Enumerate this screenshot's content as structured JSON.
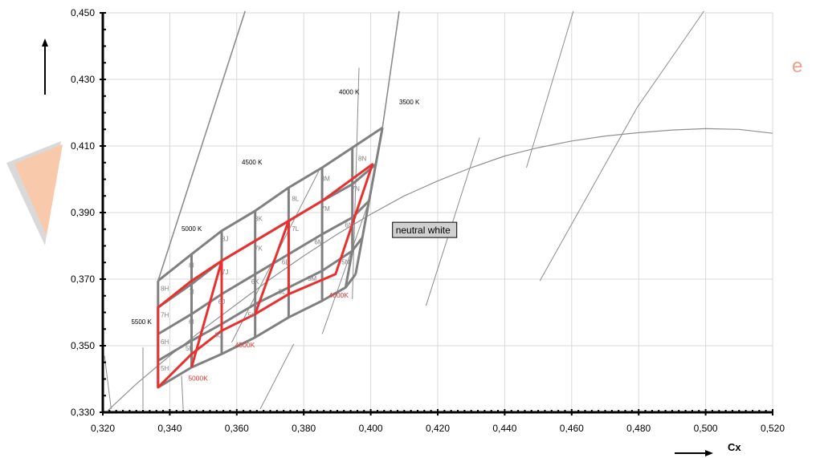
{
  "chart_data": {
    "type": "line",
    "xlabel": "Cx",
    "ylabel": "",
    "xlim": [
      0.32,
      0.52
    ],
    "ylim": [
      0.33,
      0.45
    ],
    "x_ticks": [
      "0,320",
      "0,340",
      "0,360",
      "0,380",
      "0,400",
      "0,420",
      "0,440",
      "0,460",
      "0,480",
      "0,500",
      "0,520"
    ],
    "y_ticks": [
      "0,330",
      "0,350",
      "0,370",
      "0,390",
      "0,410",
      "0,430",
      "0,450"
    ],
    "x_tick_values": [
      0.32,
      0.34,
      0.36,
      0.38,
      0.4,
      0.42,
      0.44,
      0.46,
      0.48,
      0.5,
      0.52
    ],
    "y_tick_values": [
      0.33,
      0.35,
      0.37,
      0.39,
      0.41,
      0.43,
      0.45
    ],
    "grid": true,
    "annotation": "neutral white",
    "planckian_locus": [
      [
        0.3215,
        0.3305
      ],
      [
        0.33,
        0.3385
      ],
      [
        0.34,
        0.347
      ],
      [
        0.35,
        0.355
      ],
      [
        0.36,
        0.3625
      ],
      [
        0.37,
        0.37
      ],
      [
        0.38,
        0.377
      ],
      [
        0.39,
        0.3835
      ],
      [
        0.4,
        0.3895
      ],
      [
        0.41,
        0.395
      ],
      [
        0.42,
        0.3995
      ],
      [
        0.43,
        0.4035
      ],
      [
        0.44,
        0.407
      ],
      [
        0.45,
        0.4095
      ],
      [
        0.46,
        0.4115
      ],
      [
        0.47,
        0.413
      ],
      [
        0.48,
        0.414
      ],
      [
        0.49,
        0.4148
      ],
      [
        0.5,
        0.4152
      ],
      [
        0.51,
        0.415
      ],
      [
        0.52,
        0.4138
      ]
    ],
    "isotherms": [
      {
        "label": "5500 K",
        "points": [
          [
            0.3205,
            0.347
          ],
          [
            0.3225,
            0.331
          ]
        ]
      },
      {
        "label": "",
        "points": [
          [
            0.332,
            0.3495
          ],
          [
            0.332,
            0.331
          ]
        ]
      },
      {
        "label": "5000 K",
        "points": [
          [
            0.3365,
            0.3695
          ],
          [
            0.3625,
            0.4505
          ]
        ]
      },
      {
        "label": "",
        "points": [
          [
            0.3435,
            0.341
          ],
          [
            0.344,
            0.331
          ]
        ]
      },
      {
        "label": "4500 K",
        "points": [
          [
            0.3585,
            0.351
          ],
          [
            0.3845,
            0.4025
          ]
        ]
      },
      {
        "label": "",
        "points": [
          [
            0.367,
            0.331
          ],
          [
            0.377,
            0.3505
          ]
        ]
      },
      {
        "label": "4000 K",
        "points": [
          [
            0.3855,
            0.3535
          ],
          [
            0.3995,
            0.3935
          ]
        ]
      },
      {
        "label": "",
        "points": [
          [
            0.4035,
            0.4155
          ],
          [
            0.4085,
            0.4505
          ]
        ]
      },
      {
        "label": "",
        "points": [
          [
            0.3945,
            0.364
          ],
          [
            0.3965,
            0.4335
          ]
        ]
      },
      {
        "label": "3500 K",
        "points": [
          [
            0.4165,
            0.362
          ],
          [
            0.4325,
            0.4125
          ]
        ]
      },
      {
        "label": "",
        "points": [
          [
            0.4505,
            0.3695
          ],
          [
            0.4795,
            0.4215
          ]
        ]
      },
      {
        "label": "",
        "points": [
          [
            0.4465,
            0.4035
          ],
          [
            0.4605,
            0.4505
          ]
        ]
      },
      {
        "label": "",
        "points": [
          [
            0.4795,
            0.4215
          ],
          [
            0.4995,
            0.4505
          ]
        ]
      }
    ],
    "gray_bins": {
      "color": "#808080",
      "rows": [
        [
          [
            0.3365,
            0.3695
          ],
          [
            0.3465,
            0.3775
          ],
          [
            0.3555,
            0.3845
          ],
          [
            0.3655,
            0.3905
          ],
          [
            0.3755,
            0.3975
          ],
          [
            0.3855,
            0.4035
          ],
          [
            0.3945,
            0.4095
          ],
          [
            0.4035,
            0.4155
          ]
        ],
        [
          [
            0.3365,
            0.3615
          ],
          [
            0.3465,
            0.3685
          ],
          [
            0.3555,
            0.3755
          ],
          [
            0.3655,
            0.3815
          ],
          [
            0.3755,
            0.3875
          ],
          [
            0.3855,
            0.3935
          ],
          [
            0.3945,
            0.3985
          ],
          [
            0.4015,
            0.4045
          ]
        ],
        [
          [
            0.3365,
            0.3535
          ],
          [
            0.3465,
            0.3595
          ],
          [
            0.3555,
            0.3655
          ],
          [
            0.3655,
            0.3715
          ],
          [
            0.3755,
            0.3775
          ],
          [
            0.3855,
            0.3835
          ],
          [
            0.3945,
            0.3885
          ],
          [
            0.3995,
            0.3935
          ]
        ],
        [
          [
            0.3365,
            0.3455
          ],
          [
            0.3465,
            0.3515
          ],
          [
            0.3555,
            0.3565
          ],
          [
            0.3655,
            0.3625
          ],
          [
            0.3755,
            0.3675
          ],
          [
            0.3855,
            0.3725
          ],
          [
            0.3945,
            0.3785
          ],
          [
            0.3975,
            0.3825
          ]
        ],
        [
          [
            0.3365,
            0.3375
          ],
          [
            0.3465,
            0.3435
          ],
          [
            0.3555,
            0.3475
          ],
          [
            0.3655,
            0.3525
          ],
          [
            0.3755,
            0.3585
          ],
          [
            0.3855,
            0.3635
          ],
          [
            0.3925,
            0.3675
          ],
          [
            0.3955,
            0.3715
          ]
        ]
      ]
    },
    "red_outline": {
      "color": "#e8312f",
      "series_name": "",
      "outer": [
        [
          0.3365,
          0.3375
        ],
        [
          0.3365,
          0.3615
        ],
        [
          0.3465,
          0.3695
        ],
        [
          0.3555,
          0.3755
        ],
        [
          0.3655,
          0.3815
        ],
        [
          0.3755,
          0.3875
        ],
        [
          0.3855,
          0.3935
        ],
        [
          0.4005,
          0.4045
        ],
        [
          0.3895,
          0.3715
        ],
        [
          0.3755,
          0.3655
        ],
        [
          0.3655,
          0.3595
        ],
        [
          0.3555,
          0.3545
        ],
        [
          0.3465,
          0.3475
        ]
      ],
      "inner": [
        [
          [
            0.3465,
            0.3435
          ],
          [
            0.3555,
            0.3755
          ]
        ],
        [
          [
            0.3555,
            0.3545
          ],
          [
            0.3555,
            0.3755
          ]
        ],
        [
          [
            0.3655,
            0.3595
          ],
          [
            0.3755,
            0.3875
          ]
        ],
        [
          [
            0.3755,
            0.3655
          ],
          [
            0.3755,
            0.3875
          ]
        ]
      ]
    },
    "bin_labels": [
      {
        "text": "8I",
        "x": 0.3465,
        "y": 0.3735
      },
      {
        "text": "8J",
        "x": 0.3565,
        "y": 0.3815
      },
      {
        "text": "8K",
        "x": 0.3665,
        "y": 0.3875
      },
      {
        "text": "8L",
        "x": 0.3775,
        "y": 0.3935
      },
      {
        "text": "8M",
        "x": 0.3865,
        "y": 0.3995
      },
      {
        "text": "8N",
        "x": 0.3975,
        "y": 0.4055
      },
      {
        "text": "8H",
        "x": 0.3385,
        "y": 0.3665
      },
      {
        "text": "7I",
        "x": 0.3465,
        "y": 0.3655
      },
      {
        "text": "7J",
        "x": 0.3565,
        "y": 0.3715
      },
      {
        "text": "7K",
        "x": 0.3665,
        "y": 0.3785
      },
      {
        "text": "7L",
        "x": 0.3775,
        "y": 0.3845
      },
      {
        "text": "7M",
        "x": 0.3865,
        "y": 0.3905
      },
      {
        "text": "7N",
        "x": 0.3955,
        "y": 0.3965
      },
      {
        "text": "7H",
        "x": 0.3385,
        "y": 0.3585
      },
      {
        "text": "6I",
        "x": 0.3465,
        "y": 0.3565
      },
      {
        "text": "6J",
        "x": 0.3555,
        "y": 0.3625
      },
      {
        "text": "6K",
        "x": 0.3655,
        "y": 0.3685
      },
      {
        "text": "6L",
        "x": 0.3745,
        "y": 0.3745
      },
      {
        "text": "6M",
        "x": 0.3845,
        "y": 0.3805
      },
      {
        "text": "6N",
        "x": 0.3935,
        "y": 0.3855
      },
      {
        "text": "6H",
        "x": 0.3385,
        "y": 0.3505
      },
      {
        "text": "5I",
        "x": 0.3455,
        "y": 0.3485
      },
      {
        "text": "5J",
        "x": 0.3545,
        "y": 0.3525
      },
      {
        "text": "5K",
        "x": 0.3645,
        "y": 0.3585
      },
      {
        "text": "5L",
        "x": 0.3735,
        "y": 0.3655
      },
      {
        "text": "5M",
        "x": 0.3825,
        "y": 0.3695
      },
      {
        "text": "5N",
        "x": 0.3925,
        "y": 0.3745
      },
      {
        "text": "5H",
        "x": 0.3385,
        "y": 0.3425
      }
    ],
    "red_cct_labels": [
      {
        "text": "5000K",
        "x": 0.3455,
        "y": 0.3395
      },
      {
        "text": "4500K",
        "x": 0.3595,
        "y": 0.3495
      },
      {
        "text": "4000K",
        "x": 0.3875,
        "y": 0.3645
      }
    ],
    "cct_labels": [
      {
        "text": "5500 K",
        "x": 0.3285,
        "y": 0.3565
      },
      {
        "text": "5000 K",
        "x": 0.3435,
        "y": 0.3845
      },
      {
        "text": "4500 K",
        "x": 0.3615,
        "y": 0.4045
      },
      {
        "text": "4000 K",
        "x": 0.3905,
        "y": 0.4255
      },
      {
        "text": "3500 K",
        "x": 0.4085,
        "y": 0.4225
      }
    ],
    "annotation_position": {
      "x": 0.4065,
      "y": 0.3825
    }
  },
  "colors": {
    "grid": "#d9d9d9",
    "locus": "#909090",
    "iso": "#8c8c8c",
    "bins": "#808080",
    "red": "#e8312f",
    "annotation_fill": "#d0d0d0",
    "watermark_fill": "#f9c9ab",
    "watermark_shadow": "#d9d9d9"
  }
}
